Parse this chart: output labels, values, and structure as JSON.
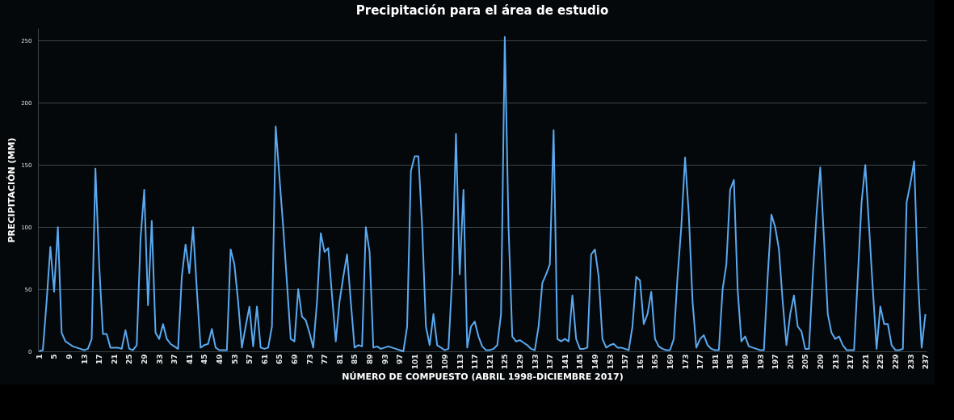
{
  "chart_data": {
    "type": "line",
    "title": "Precipitación para el área de estudio",
    "xlabel": "NÚMERO DE COMPUESTO (ABRIL 1998-DICIEMBRE 2017)",
    "ylabel": "PRECIPITACIÓN (MM)",
    "categories": [
      "1",
      null,
      null,
      null,
      "5",
      null,
      null,
      null,
      "9",
      null,
      null,
      null,
      "13",
      null,
      null,
      null,
      "17",
      null,
      null,
      null,
      "21",
      null,
      null,
      null,
      "25",
      null,
      null,
      null,
      "29",
      null,
      null,
      null,
      "33",
      null,
      null,
      null,
      "37",
      null,
      null,
      null,
      "41",
      null,
      null,
      null,
      "45",
      null,
      null,
      null,
      "49",
      null,
      null,
      null,
      "53",
      null,
      null,
      null,
      "57",
      null,
      null,
      null,
      "61",
      null,
      null,
      null,
      "65",
      null,
      null,
      null,
      "69",
      null,
      null,
      null,
      "73",
      null,
      null,
      null,
      "77",
      null,
      null,
      null,
      "81",
      null,
      null,
      null,
      "85",
      null,
      null,
      null,
      "89",
      null,
      null,
      null,
      "93",
      null,
      null,
      null,
      "97",
      null,
      null,
      null,
      "101",
      null,
      null,
      null,
      "105",
      null,
      null,
      null,
      "109",
      null,
      null,
      null,
      "113",
      null,
      null,
      null,
      "117",
      null,
      null,
      null,
      "121",
      null,
      null,
      null,
      "125",
      null,
      null,
      null,
      "129",
      null,
      null,
      null,
      "133",
      null,
      null,
      null,
      "137",
      null,
      null,
      null,
      "141",
      null,
      null,
      null,
      "145",
      null,
      null,
      null,
      "149",
      null,
      null,
      null,
      "153",
      null,
      null,
      null,
      "157",
      null,
      null,
      null,
      "161",
      null,
      null,
      null,
      "165",
      null,
      null,
      null,
      "169",
      null,
      null,
      null,
      "173",
      null,
      null,
      null,
      "177",
      null,
      null,
      null,
      "181",
      null,
      null,
      null,
      "185",
      null,
      null,
      null,
      "189",
      null,
      null,
      null,
      "193",
      null,
      null,
      null,
      "197",
      null,
      null,
      null,
      "201",
      null,
      null,
      null,
      "205",
      null,
      null,
      null,
      "209",
      null,
      null,
      null,
      "213",
      null,
      null,
      null,
      "217",
      null,
      null,
      null,
      "221",
      null,
      null,
      null,
      "225",
      null,
      null,
      null,
      "229",
      null,
      null,
      null,
      "233",
      null,
      null,
      null,
      "237"
    ],
    "series": [
      {
        "color": "#5aa9f0",
        "values": [
          0,
          1,
          40,
          84,
          48,
          100,
          15,
          8,
          6,
          4,
          3,
          2,
          1,
          2,
          10,
          147,
          70,
          14,
          14,
          3,
          3,
          3,
          2,
          17,
          2,
          1,
          5,
          90,
          130,
          37,
          105,
          15,
          10,
          22,
          10,
          6,
          4,
          2,
          60,
          86,
          63,
          100,
          50,
          3,
          5,
          6,
          18,
          3,
          1,
          1,
          1,
          82,
          70,
          40,
          3,
          20,
          36,
          4,
          36,
          3,
          2,
          3,
          20,
          181,
          140,
          100,
          55,
          10,
          8,
          50,
          28,
          25,
          15,
          3,
          40,
          95,
          80,
          83,
          45,
          8,
          40,
          60,
          78,
          40,
          3,
          5,
          4,
          100,
          80,
          3,
          4,
          2,
          3,
          4,
          3,
          2,
          1,
          0,
          20,
          145,
          157,
          157,
          100,
          20,
          5,
          30,
          5,
          3,
          1,
          2,
          60,
          175,
          62,
          130,
          3,
          20,
          24,
          12,
          4,
          1,
          1,
          2,
          5,
          30,
          253,
          100,
          12,
          8,
          9,
          7,
          5,
          2,
          1,
          20,
          55,
          62,
          70,
          178,
          10,
          8,
          10,
          8,
          45,
          10,
          2,
          2,
          3,
          78,
          82,
          60,
          10,
          3,
          5,
          6,
          3,
          3,
          2,
          1,
          20,
          60,
          57,
          22,
          30,
          48,
          10,
          4,
          2,
          1,
          1,
          10,
          60,
          100,
          156,
          110,
          40,
          3,
          10,
          13,
          5,
          2,
          1,
          1,
          50,
          70,
          130,
          138,
          50,
          8,
          12,
          4,
          3,
          2,
          1,
          1,
          60,
          110,
          100,
          82,
          40,
          5,
          30,
          45,
          20,
          16,
          2,
          2,
          60,
          110,
          148,
          90,
          30,
          15,
          10,
          12,
          5,
          1,
          1,
          1,
          60,
          120,
          150,
          100,
          50,
          2,
          36,
          22,
          22,
          5,
          1,
          1,
          2,
          120,
          135,
          153,
          60,
          3,
          30
        ]
      }
    ],
    "ylim": [
      0,
      260
    ],
    "yticks": [
      0,
      50,
      100,
      150,
      200,
      250
    ],
    "grid": "y",
    "line_style": "solid"
  }
}
